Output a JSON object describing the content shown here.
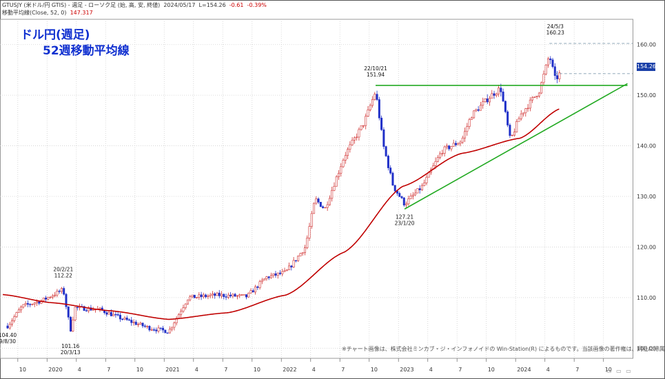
{
  "header": {
    "symbol_line": "GTUSJY (米ドル/円 GTIS) - 週足 - ローソク足 (始, 高, 安, 終値)",
    "date": "2024/05/17",
    "last": "L=154.26",
    "change": "-0.61",
    "change_pct": "-0.39%",
    "ma_label": "移動平均線(Close, 52, 0)",
    "ma_value": "147.317"
  },
  "title": {
    "line1": "ドル円(週足)",
    "line2": "52週移動平均線"
  },
  "footnote": "※チャート画像は、株式会社ミンカブ・ジ・インフォノイドの Win-Station(R) によるものです。当該画像の著作権は、同社に帰属します。",
  "current_price_tag": "154.26",
  "colors": {
    "up_candle": "#d03030",
    "down_candle": "#2030c8",
    "ma_line": "#c00000",
    "trend_lines": "#22aa22",
    "title_text": "#1030d0",
    "price_tag_bg": "#1a3fa8"
  },
  "chart_data": {
    "type": "candlestick",
    "title": "ドル円(週足) 52週移動平均線",
    "ylim": [
      98,
      165
    ],
    "y_ticks": [
      "100.00",
      "110.00",
      "120.00",
      "130.00",
      "140.00",
      "150.00",
      "160.00"
    ],
    "x_ticks": [
      "10",
      "2020",
      "4",
      "7",
      "10",
      "2021",
      "4",
      "7",
      "10",
      "2022",
      "4",
      "7",
      "10",
      "2023",
      "4",
      "7",
      "10",
      "2024",
      "4",
      "7",
      "10"
    ],
    "grid": true,
    "price_path": [
      {
        "date": "2019/8/30",
        "value": 104.4
      },
      {
        "date": "2019/10",
        "value": 108.3
      },
      {
        "date": "2019/12",
        "value": 109.4
      },
      {
        "date": "2020/2/21",
        "value": 111.6
      },
      {
        "date": "2020/3/13",
        "value": 103.5
      },
      {
        "date": "2020/3/27",
        "value": 108.0
      },
      {
        "date": "2020/6",
        "value": 107.6
      },
      {
        "date": "2020/8",
        "value": 106.0
      },
      {
        "date": "2020/11",
        "value": 104.0
      },
      {
        "date": "2021/1",
        "value": 103.3
      },
      {
        "date": "2021/3",
        "value": 110.0
      },
      {
        "date": "2021/6",
        "value": 110.5
      },
      {
        "date": "2021/9",
        "value": 110.2
      },
      {
        "date": "2021/11",
        "value": 114.0
      },
      {
        "date": "2022/1",
        "value": 115.0
      },
      {
        "date": "2022/3",
        "value": 120.0
      },
      {
        "date": "2022/4",
        "value": 129.5
      },
      {
        "date": "2022/5",
        "value": 127.5
      },
      {
        "date": "2022/7",
        "value": 138.0
      },
      {
        "date": "2022/9",
        "value": 144.5
      },
      {
        "date": "2022/10/21",
        "value": 150.8
      },
      {
        "date": "2022/11",
        "value": 140.0
      },
      {
        "date": "2022/12",
        "value": 132.0
      },
      {
        "date": "2023/1/20",
        "value": 128.5
      },
      {
        "date": "2023/3",
        "value": 132.0
      },
      {
        "date": "2023/5",
        "value": 139.0
      },
      {
        "date": "2023/7",
        "value": 141.0
      },
      {
        "date": "2023/8",
        "value": 146.0
      },
      {
        "date": "2023/10",
        "value": 149.9
      },
      {
        "date": "2023/11",
        "value": 151.4
      },
      {
        "date": "2023/12",
        "value": 141.0
      },
      {
        "date": "2024/1",
        "value": 146.0
      },
      {
        "date": "2024/3",
        "value": 151.0
      },
      {
        "date": "2024/4",
        "value": 158.0
      },
      {
        "date": "2024/5/3",
        "value": 153.0
      },
      {
        "date": "2024/5/17",
        "value": 154.26
      }
    ],
    "series": [
      {
        "name": "移動平均線(Close, 52, 0)",
        "values": [
          {
            "date": "2019/8",
            "value": 110.6
          },
          {
            "date": "2020/1",
            "value": 109.0
          },
          {
            "date": "2020/7",
            "value": 107.4
          },
          {
            "date": "2021/1",
            "value": 105.7
          },
          {
            "date": "2021/7",
            "value": 107.0
          },
          {
            "date": "2022/1",
            "value": 110.5
          },
          {
            "date": "2022/7",
            "value": 119.0
          },
          {
            "date": "2023/1",
            "value": 132.0
          },
          {
            "date": "2023/7",
            "value": 138.5
          },
          {
            "date": "2024/1",
            "value": 141.5
          },
          {
            "date": "2024/5/17",
            "value": 147.317
          }
        ]
      }
    ],
    "trend_lines": [
      {
        "name": "resistance",
        "from": {
          "date": "2022/10/21",
          "value": 151.94
        },
        "to": {
          "date": "2024/12",
          "value": 151.94
        }
      },
      {
        "name": "support",
        "from": {
          "date": "2023/1/20",
          "value": 127.5
        },
        "to": {
          "date": "2024/12",
          "value": 152.3
        }
      }
    ],
    "annotations": [
      {
        "date_label": "24/5/3",
        "value_label": "160.23"
      },
      {
        "date_label": "22/10/21",
        "value_label": "151.94"
      },
      {
        "date_label": "20/2/21",
        "value_label": "112.22"
      },
      {
        "date_label": "127.21",
        "value_label": "23/1/20"
      },
      {
        "date_label": "101.16",
        "value_label": "20/3/13"
      },
      {
        "date_label": "104.40",
        "value_label": "9/8/30"
      }
    ]
  }
}
